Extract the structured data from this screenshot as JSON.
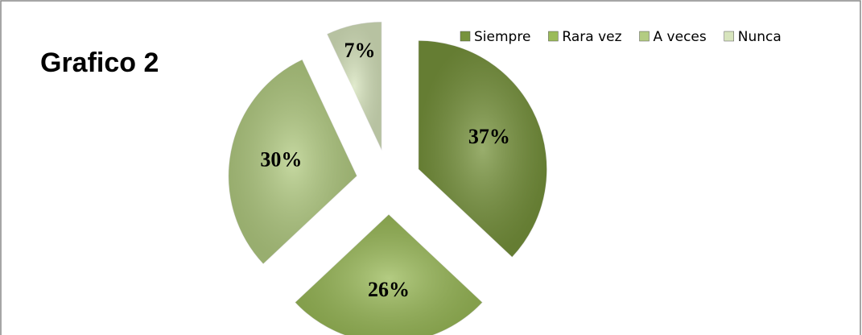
{
  "chart_data": {
    "type": "pie",
    "title": "Grafico 2",
    "categories": [
      "Siempre",
      "Rara vez",
      "A veces",
      "Nunca"
    ],
    "values": [
      37,
      26,
      30,
      7
    ],
    "value_labels": [
      "37%",
      "26%",
      "30%",
      "7%"
    ],
    "colors": [
      "#77933c",
      "#9bbb59",
      "#b3cc82",
      "#d7e4bd"
    ],
    "legend": "top-right"
  }
}
